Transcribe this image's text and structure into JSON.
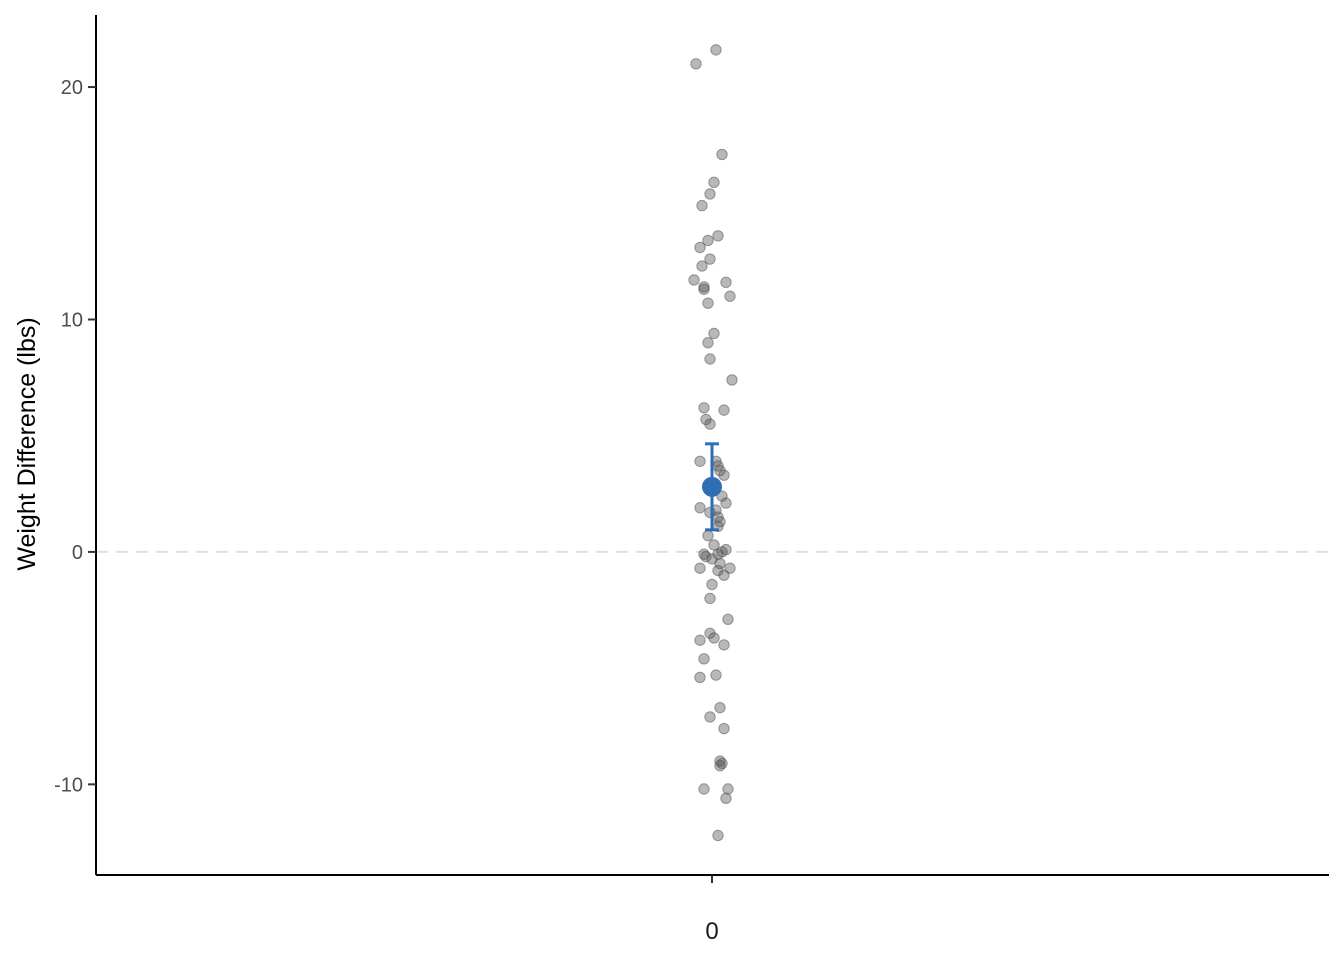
{
  "chart_data": {
    "type": "scatter",
    "title": "",
    "xlabel": "",
    "ylabel": "Weight Difference (lbs)",
    "x_categories": [
      "0"
    ],
    "y_ticks": [
      "-10",
      "0",
      "10",
      "20"
    ],
    "ylim": [
      -13.9,
      23.1
    ],
    "reference_line": {
      "y": 0,
      "style": "dashed"
    },
    "grid": false,
    "colors": {
      "points": "#555555",
      "mean": "#2f6db5",
      "reference": "#e0e0e0",
      "axis": "#000000"
    },
    "points": [
      {
        "x": -0.04,
        "y": 21.0
      },
      {
        "x": 0.01,
        "y": 21.6
      },
      {
        "x": 0.025,
        "y": 17.1
      },
      {
        "x": 0.005,
        "y": 15.9
      },
      {
        "x": -0.005,
        "y": 15.4
      },
      {
        "x": -0.025,
        "y": 14.9
      },
      {
        "x": 0.015,
        "y": 13.6
      },
      {
        "x": -0.03,
        "y": 13.1
      },
      {
        "x": -0.01,
        "y": 13.4
      },
      {
        "x": -0.005,
        "y": 12.6
      },
      {
        "x": -0.025,
        "y": 12.3
      },
      {
        "x": -0.045,
        "y": 11.7
      },
      {
        "x": 0.035,
        "y": 11.6
      },
      {
        "x": -0.02,
        "y": 11.4
      },
      {
        "x": -0.02,
        "y": 11.3
      },
      {
        "x": 0.045,
        "y": 11.0
      },
      {
        "x": -0.01,
        "y": 10.7
      },
      {
        "x": 0.005,
        "y": 9.4
      },
      {
        "x": -0.01,
        "y": 9.0
      },
      {
        "x": -0.005,
        "y": 8.3
      },
      {
        "x": 0.05,
        "y": 7.4
      },
      {
        "x": -0.02,
        "y": 6.2
      },
      {
        "x": 0.03,
        "y": 6.1
      },
      {
        "x": -0.015,
        "y": 5.7
      },
      {
        "x": -0.005,
        "y": 5.5
      },
      {
        "x": 0.01,
        "y": 3.9
      },
      {
        "x": -0.03,
        "y": 3.9
      },
      {
        "x": 0.015,
        "y": 3.7
      },
      {
        "x": 0.02,
        "y": 3.5
      },
      {
        "x": 0.03,
        "y": 3.3
      },
      {
        "x": 0.025,
        "y": 2.4
      },
      {
        "x": 0.035,
        "y": 2.1
      },
      {
        "x": -0.03,
        "y": 1.9
      },
      {
        "x": 0.01,
        "y": 1.8
      },
      {
        "x": -0.005,
        "y": 1.7
      },
      {
        "x": 0.015,
        "y": 1.5
      },
      {
        "x": 0.02,
        "y": 1.3
      },
      {
        "x": 0.015,
        "y": 1.1
      },
      {
        "x": -0.01,
        "y": 0.7
      },
      {
        "x": 0.005,
        "y": 0.3
      },
      {
        "x": 0.035,
        "y": 0.1
      },
      {
        "x": 0.025,
        "y": 0.0
      },
      {
        "x": 0.015,
        "y": -0.1
      },
      {
        "x": -0.02,
        "y": -0.1
      },
      {
        "x": -0.015,
        "y": -0.2
      },
      {
        "x": 0.0,
        "y": -0.3
      },
      {
        "x": 0.02,
        "y": -0.5
      },
      {
        "x": -0.03,
        "y": -0.7
      },
      {
        "x": 0.045,
        "y": -0.7
      },
      {
        "x": 0.015,
        "y": -0.8
      },
      {
        "x": 0.03,
        "y": -1.0
      },
      {
        "x": 0.0,
        "y": -1.4
      },
      {
        "x": -0.005,
        "y": -2.0
      },
      {
        "x": 0.04,
        "y": -2.9
      },
      {
        "x": -0.005,
        "y": -3.5
      },
      {
        "x": 0.005,
        "y": -3.7
      },
      {
        "x": -0.03,
        "y": -3.8
      },
      {
        "x": 0.03,
        "y": -4.0
      },
      {
        "x": -0.02,
        "y": -4.6
      },
      {
        "x": 0.01,
        "y": -5.3
      },
      {
        "x": -0.03,
        "y": -5.4
      },
      {
        "x": 0.02,
        "y": -6.7
      },
      {
        "x": -0.005,
        "y": -7.1
      },
      {
        "x": 0.03,
        "y": -7.6
      },
      {
        "x": 0.02,
        "y": -9.0
      },
      {
        "x": 0.025,
        "y": -9.1
      },
      {
        "x": 0.02,
        "y": -9.2
      },
      {
        "x": -0.02,
        "y": -10.2
      },
      {
        "x": 0.04,
        "y": -10.2
      },
      {
        "x": 0.035,
        "y": -10.6
      },
      {
        "x": 0.015,
        "y": -12.2
      }
    ],
    "mean": {
      "x": 0,
      "y": 2.8,
      "ci_low": 0.95,
      "ci_high": 4.65
    }
  }
}
